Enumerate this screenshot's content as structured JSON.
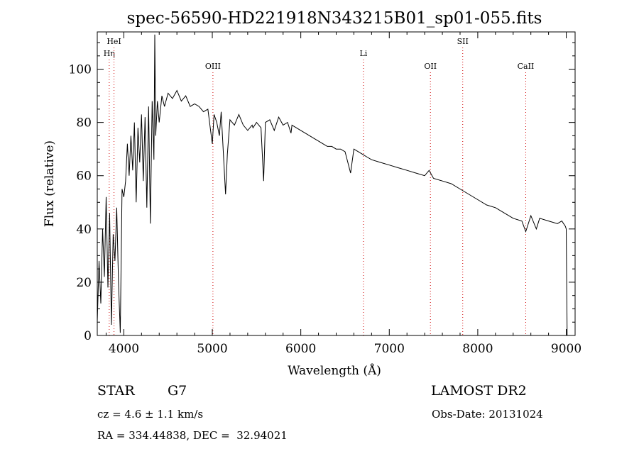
{
  "title": "spec-56590-HD221918N343215B01_sp01-055.fits",
  "info": {
    "object_type": "STAR",
    "subclass": "G7",
    "survey": "LAMOST DR2",
    "cz": "cz = 4.6 ± 1.1 km/s",
    "obs_date": "Obs-Date: 20131024",
    "coords": "RA = 334.44838, DEC =  32.94021"
  },
  "chart_data": {
    "type": "line",
    "xlabel": "Wavelength (Å)",
    "ylabel": "Flux (relative)",
    "xlim": [
      3700,
      9100
    ],
    "ylim": [
      0,
      114
    ],
    "xticks": [
      4000,
      5000,
      6000,
      7000,
      8000,
      9000
    ],
    "yticks": [
      0,
      20,
      40,
      60,
      80,
      100
    ],
    "line_color": "#000000",
    "marker_color": "#d00000",
    "spectral_lines": [
      {
        "label": "Hη",
        "x": 3835,
        "row": 2
      },
      {
        "label": "HeI",
        "x": 3889,
        "row": 1
      },
      {
        "label": "OIII",
        "x": 5007,
        "row": 3
      },
      {
        "label": "Li",
        "x": 6708,
        "row": 2
      },
      {
        "label": "OII",
        "x": 7465,
        "row": 3
      },
      {
        "label": "SII",
        "x": 7830,
        "row": 1
      },
      {
        "label": "CaII",
        "x": 8542,
        "row": 3
      }
    ],
    "series": [
      {
        "x": [
          3700,
          3720,
          3740,
          3760,
          3780,
          3800,
          3820,
          3840,
          3860,
          3880,
          3900,
          3920,
          3940,
          3960,
          3980,
          4000,
          4020,
          4040,
          4060,
          4080,
          4100,
          4120,
          4140,
          4160,
          4180,
          4200,
          4220,
          4240,
          4260,
          4280,
          4300,
          4320,
          4340,
          4350,
          4360,
          4380,
          4400,
          4430,
          4460,
          4500,
          4550,
          4600,
          4650,
          4700,
          4750,
          4800,
          4850,
          4900,
          4950,
          5000,
          5020,
          5050,
          5080,
          5100,
          5150,
          5170,
          5200,
          5250,
          5300,
          5350,
          5400,
          5450,
          5460,
          5500,
          5550,
          5580,
          5600,
          5650,
          5700,
          5750,
          5800,
          5850,
          5890,
          5900,
          5950,
          6000,
          6050,
          6100,
          6150,
          6200,
          6250,
          6300,
          6350,
          6400,
          6450,
          6500,
          6563,
          6600,
          6650,
          6700,
          6750,
          6800,
          6900,
          7000,
          7100,
          7200,
          7300,
          7400,
          7450,
          7500,
          7600,
          7700,
          7800,
          7900,
          8000,
          8100,
          8200,
          8300,
          8400,
          8498,
          8542,
          8600,
          8662,
          8700,
          8800,
          8900,
          8950,
          8990,
          9000,
          9010
        ],
        "y": [
          5,
          28,
          12,
          40,
          22,
          52,
          18,
          46,
          4,
          38,
          28,
          48,
          20,
          1,
          55,
          52,
          58,
          72,
          60,
          75,
          62,
          80,
          50,
          78,
          65,
          83,
          58,
          82,
          48,
          86,
          42,
          88,
          66,
          113,
          75,
          88,
          80,
          90,
          86,
          91,
          89,
          92,
          88,
          90,
          86,
          87,
          86,
          84,
          85,
          72,
          83,
          80,
          75,
          84,
          53,
          68,
          81,
          79,
          83,
          79,
          77,
          79,
          78,
          80,
          78,
          58,
          80,
          81,
          77,
          82,
          79,
          80,
          76,
          79,
          78,
          77,
          76,
          75,
          74,
          73,
          72,
          71,
          71,
          70,
          70,
          69,
          61,
          70,
          69,
          68,
          67,
          66,
          65,
          64,
          63,
          62,
          61,
          60,
          62,
          59,
          58,
          57,
          55,
          53,
          51,
          49,
          48,
          46,
          44,
          43,
          39,
          45,
          40,
          44,
          43,
          42,
          43,
          41,
          40,
          0
        ]
      }
    ]
  }
}
